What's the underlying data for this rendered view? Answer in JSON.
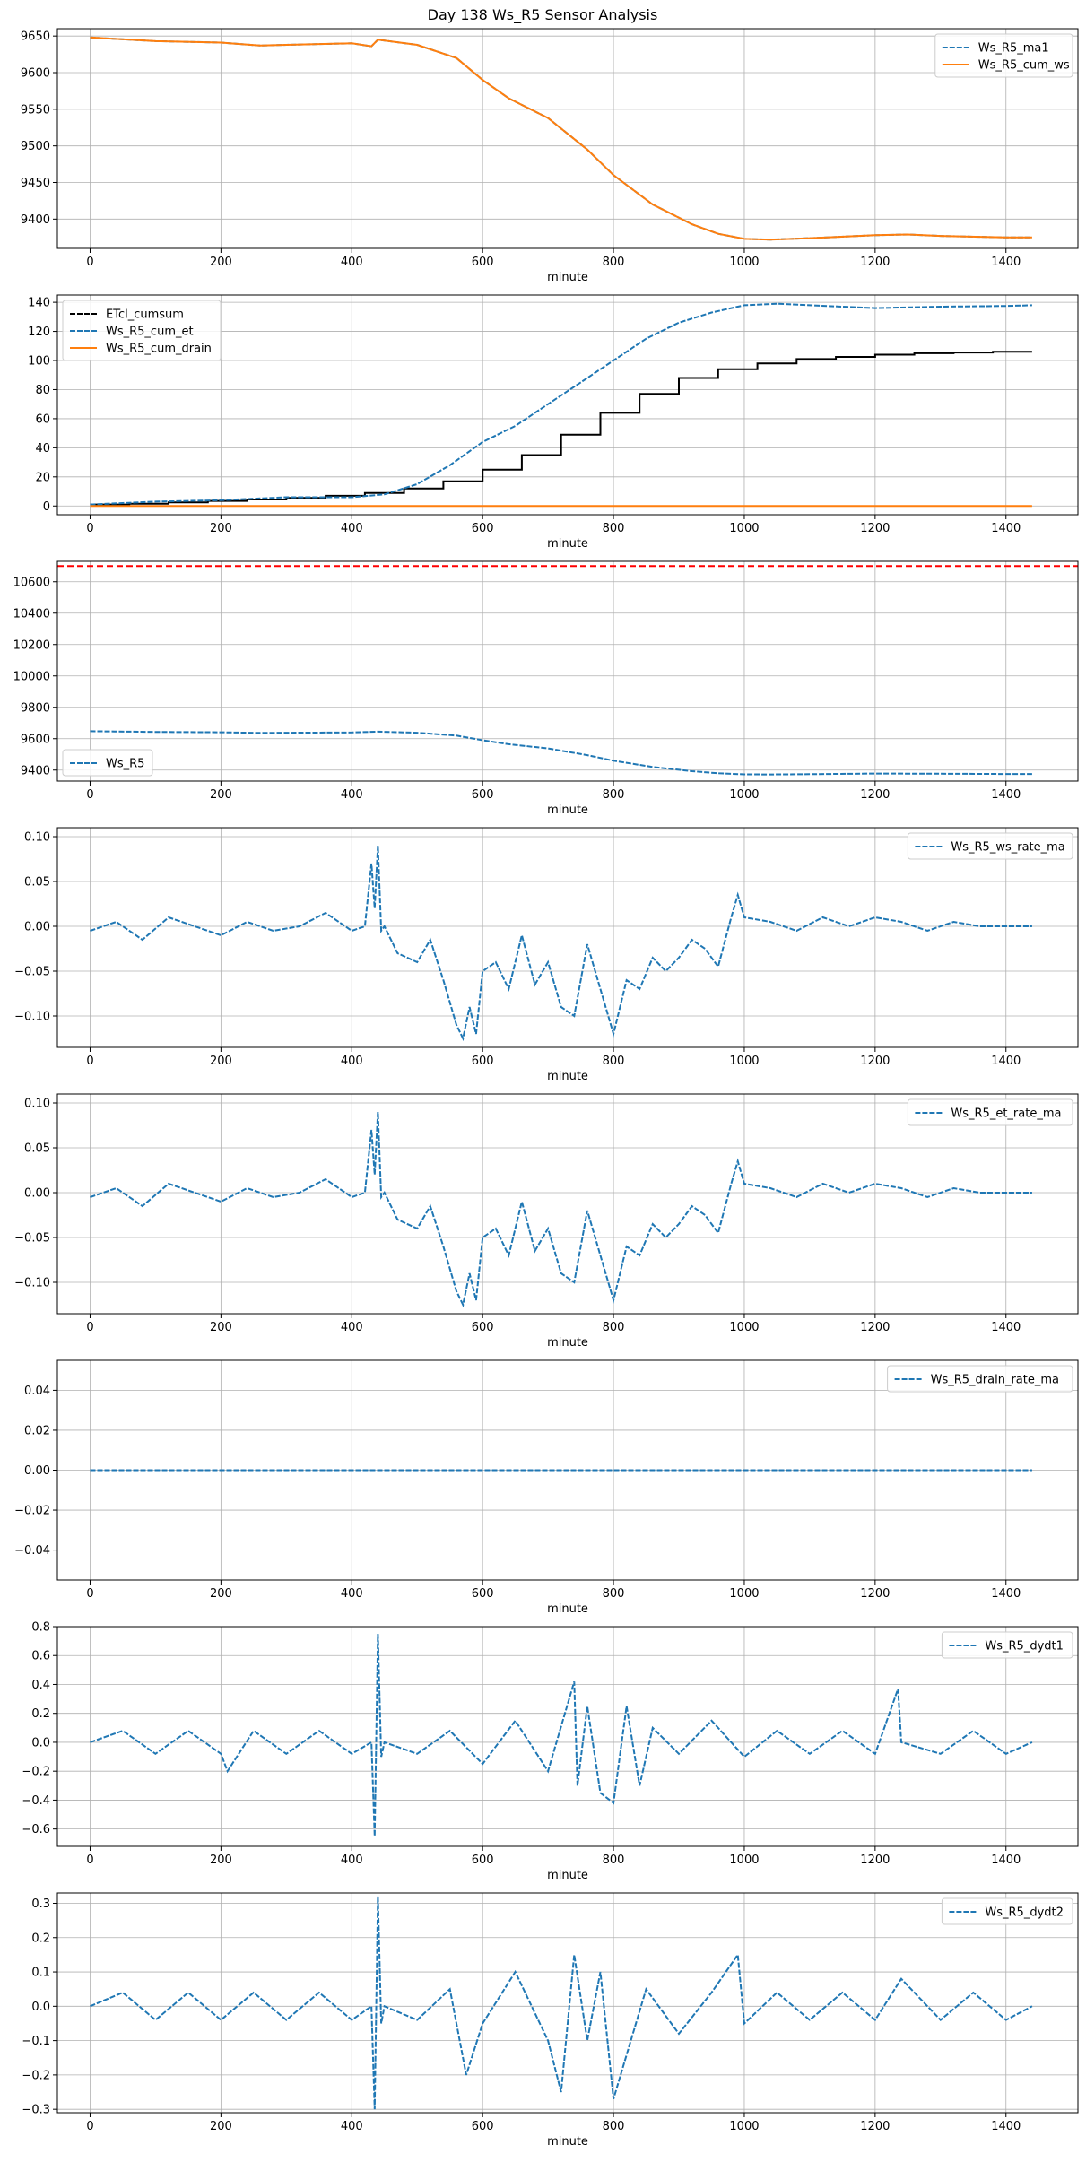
{
  "figure": {
    "title": "Day 138 Ws_R5 Sensor Analysis"
  },
  "colors": {
    "blue": "#1f77b4",
    "orange": "#ff7f0e",
    "black": "#000000",
    "red": "#ff0000",
    "grid": "#b0b0b0"
  },
  "chart_data": [
    {
      "type": "line",
      "xlabel": "minute",
      "xlim": [
        -50,
        1510
      ],
      "ylim": [
        9360,
        9660
      ],
      "xticks": [
        0,
        200,
        400,
        600,
        800,
        1000,
        1200,
        1400
      ],
      "yticks": [
        9400,
        9450,
        9500,
        9550,
        9600,
        9650
      ],
      "legend": "top-right",
      "grid": true,
      "series": [
        {
          "name": "Ws_R5_ma1",
          "color": "#1f77b4",
          "style": "dashed",
          "x": [
            0,
            100,
            200,
            260,
            300,
            400,
            430,
            440,
            500,
            560,
            600,
            640,
            700,
            760,
            800,
            860,
            920,
            960,
            1000,
            1040,
            1100,
            1200,
            1250,
            1300,
            1400,
            1440
          ],
          "y": [
            9648,
            9643,
            9641,
            9637,
            9638,
            9640,
            9636,
            9645,
            9638,
            9620,
            9590,
            9565,
            9538,
            9495,
            9460,
            9420,
            9393,
            9380,
            9373,
            9372,
            9374,
            9378,
            9379,
            9377,
            9375,
            9375
          ]
        },
        {
          "name": "Ws_R5_cum_ws",
          "color": "#ff7f0e",
          "style": "solid",
          "x": [
            0,
            100,
            200,
            260,
            300,
            400,
            430,
            440,
            500,
            560,
            600,
            640,
            700,
            760,
            800,
            860,
            920,
            960,
            1000,
            1040,
            1100,
            1200,
            1250,
            1300,
            1400,
            1440
          ],
          "y": [
            9648,
            9643,
            9641,
            9637,
            9638,
            9640,
            9636,
            9645,
            9638,
            9620,
            9590,
            9565,
            9538,
            9495,
            9460,
            9420,
            9393,
            9380,
            9373,
            9372,
            9374,
            9378,
            9379,
            9377,
            9375,
            9375
          ]
        }
      ]
    },
    {
      "type": "line",
      "xlabel": "minute",
      "xlim": [
        -50,
        1510
      ],
      "ylim": [
        -6,
        145
      ],
      "xticks": [
        0,
        200,
        400,
        600,
        800,
        1000,
        1200,
        1400
      ],
      "yticks": [
        0,
        20,
        40,
        60,
        80,
        100,
        120,
        140
      ],
      "legend": "top-left",
      "grid": true,
      "series": [
        {
          "name": "ETcl_cumsum",
          "color": "#000000",
          "style": "step",
          "x": [
            0,
            60,
            120,
            180,
            240,
            300,
            360,
            420,
            480,
            540,
            600,
            660,
            720,
            780,
            840,
            900,
            960,
            1020,
            1080,
            1140,
            1200,
            1260,
            1320,
            1380,
            1440
          ],
          "y": [
            1,
            1.5,
            2.5,
            3.5,
            4.5,
            5.5,
            7,
            9,
            12,
            17,
            25,
            35,
            49,
            64,
            77,
            88,
            94,
            98,
            101,
            102.5,
            104,
            105,
            105.5,
            106,
            106
          ]
        },
        {
          "name": "Ws_R5_cum_et",
          "color": "#1f77b4",
          "style": "dashed",
          "x": [
            0,
            100,
            200,
            300,
            400,
            450,
            500,
            550,
            600,
            650,
            700,
            750,
            800,
            850,
            900,
            950,
            1000,
            1050,
            1100,
            1200,
            1300,
            1400,
            1440
          ],
          "y": [
            1,
            3,
            4,
            6,
            6,
            8,
            15,
            28,
            44,
            55,
            70,
            85,
            100,
            115,
            126,
            133,
            138,
            139,
            138,
            136,
            137,
            137.5,
            138
          ]
        },
        {
          "name": "Ws_R5_cum_drain",
          "color": "#ff7f0e",
          "style": "solid",
          "x": [
            0,
            1440
          ],
          "y": [
            0,
            0
          ]
        }
      ]
    },
    {
      "type": "line",
      "xlabel": "minute",
      "xlim": [
        -50,
        1510
      ],
      "ylim": [
        9330,
        10730
      ],
      "xticks": [
        0,
        200,
        400,
        600,
        800,
        1000,
        1200,
        1400
      ],
      "yticks": [
        9400,
        9600,
        9800,
        10000,
        10200,
        10400,
        10600
      ],
      "legend": "bottom-left",
      "grid": true,
      "hline": {
        "y": 10700,
        "color": "#ff0000",
        "style": "dashed"
      },
      "series": [
        {
          "name": "Ws_R5",
          "color": "#1f77b4",
          "style": "dashed",
          "x": [
            0,
            100,
            200,
            260,
            300,
            400,
            440,
            500,
            560,
            600,
            640,
            700,
            760,
            800,
            860,
            920,
            960,
            1000,
            1040,
            1100,
            1200,
            1300,
            1400,
            1440
          ],
          "y": [
            9648,
            9643,
            9641,
            9637,
            9638,
            9640,
            9645,
            9638,
            9620,
            9590,
            9565,
            9538,
            9495,
            9460,
            9420,
            9393,
            9380,
            9373,
            9372,
            9374,
            9378,
            9377,
            9375,
            9375
          ]
        }
      ]
    },
    {
      "type": "line",
      "xlabel": "minute",
      "xlim": [
        -50,
        1510
      ],
      "ylim": [
        -0.135,
        0.11
      ],
      "xticks": [
        0,
        200,
        400,
        600,
        800,
        1000,
        1200,
        1400
      ],
      "yticks": [
        -0.1,
        -0.05,
        0.0,
        0.05,
        0.1
      ],
      "yformat": 2,
      "legend": "top-right",
      "grid": true,
      "series": [
        {
          "name": "Ws_R5_ws_rate_ma",
          "color": "#1f77b4",
          "style": "dashed",
          "x": [
            0,
            40,
            80,
            120,
            160,
            200,
            240,
            280,
            320,
            360,
            400,
            420,
            430,
            435,
            440,
            445,
            450,
            470,
            500,
            520,
            540,
            560,
            570,
            580,
            590,
            600,
            620,
            640,
            660,
            680,
            700,
            720,
            740,
            760,
            780,
            800,
            820,
            840,
            860,
            880,
            900,
            920,
            940,
            960,
            980,
            990,
            1000,
            1040,
            1080,
            1120,
            1160,
            1200,
            1240,
            1280,
            1320,
            1360,
            1400,
            1440
          ],
          "y": [
            -0.005,
            0.005,
            -0.015,
            0.01,
            0.0,
            -0.01,
            0.005,
            -0.005,
            0.0,
            0.015,
            -0.005,
            0.0,
            0.07,
            0.02,
            0.09,
            -0.005,
            0.0,
            -0.03,
            -0.04,
            -0.015,
            -0.06,
            -0.11,
            -0.125,
            -0.09,
            -0.12,
            -0.05,
            -0.04,
            -0.07,
            -0.01,
            -0.065,
            -0.04,
            -0.09,
            -0.1,
            -0.02,
            -0.07,
            -0.12,
            -0.06,
            -0.07,
            -0.035,
            -0.05,
            -0.035,
            -0.015,
            -0.025,
            -0.045,
            0.01,
            0.035,
            0.01,
            0.005,
            -0.005,
            0.01,
            0.0,
            0.01,
            0.005,
            -0.005,
            0.005,
            0.0,
            0.0,
            0.0
          ]
        }
      ]
    },
    {
      "type": "line",
      "xlabel": "minute",
      "xlim": [
        -50,
        1510
      ],
      "ylim": [
        -0.135,
        0.11
      ],
      "xticks": [
        0,
        200,
        400,
        600,
        800,
        1000,
        1200,
        1400
      ],
      "yticks": [
        -0.1,
        -0.05,
        0.0,
        0.05,
        0.1
      ],
      "yformat": 2,
      "legend": "top-right",
      "grid": true,
      "series": [
        {
          "name": "Ws_R5_et_rate_ma",
          "color": "#1f77b4",
          "style": "dashed",
          "x": [
            0,
            40,
            80,
            120,
            160,
            200,
            240,
            280,
            320,
            360,
            400,
            420,
            430,
            435,
            440,
            445,
            450,
            470,
            500,
            520,
            540,
            560,
            570,
            580,
            590,
            600,
            620,
            640,
            660,
            680,
            700,
            720,
            740,
            760,
            780,
            800,
            820,
            840,
            860,
            880,
            900,
            920,
            940,
            960,
            980,
            990,
            1000,
            1040,
            1080,
            1120,
            1160,
            1200,
            1240,
            1280,
            1320,
            1360,
            1400,
            1440
          ],
          "y": [
            -0.005,
            0.005,
            -0.015,
            0.01,
            0.0,
            -0.01,
            0.005,
            -0.005,
            0.0,
            0.015,
            -0.005,
            0.0,
            0.07,
            0.02,
            0.09,
            -0.005,
            0.0,
            -0.03,
            -0.04,
            -0.015,
            -0.06,
            -0.11,
            -0.125,
            -0.09,
            -0.12,
            -0.05,
            -0.04,
            -0.07,
            -0.01,
            -0.065,
            -0.04,
            -0.09,
            -0.1,
            -0.02,
            -0.07,
            -0.12,
            -0.06,
            -0.07,
            -0.035,
            -0.05,
            -0.035,
            -0.015,
            -0.025,
            -0.045,
            0.01,
            0.035,
            0.01,
            0.005,
            -0.005,
            0.01,
            0.0,
            0.01,
            0.005,
            -0.005,
            0.005,
            0.0,
            0.0,
            0.0
          ]
        }
      ]
    },
    {
      "type": "line",
      "xlabel": "minute",
      "xlim": [
        -50,
        1510
      ],
      "ylim": [
        -0.055,
        0.055
      ],
      "xticks": [
        0,
        200,
        400,
        600,
        800,
        1000,
        1200,
        1400
      ],
      "yticks": [
        -0.04,
        -0.02,
        0.0,
        0.02,
        0.04
      ],
      "yformat": 2,
      "legend": "top-right",
      "grid": true,
      "series": [
        {
          "name": "Ws_R5_drain_rate_ma",
          "color": "#1f77b4",
          "style": "dashed",
          "x": [
            0,
            1440
          ],
          "y": [
            0,
            0
          ]
        }
      ]
    },
    {
      "type": "line",
      "xlabel": "minute",
      "xlim": [
        -50,
        1510
      ],
      "ylim": [
        -0.72,
        0.8
      ],
      "xticks": [
        0,
        200,
        400,
        600,
        800,
        1000,
        1200,
        1400
      ],
      "yticks": [
        -0.6,
        -0.4,
        -0.2,
        0.0,
        0.2,
        0.4,
        0.6,
        0.8
      ],
      "yformat": 1,
      "legend": "top-right",
      "grid": true,
      "series": [
        {
          "name": "Ws_R5_dydt1",
          "color": "#1f77b4",
          "style": "dashed",
          "x": [
            0,
            50,
            100,
            150,
            200,
            210,
            250,
            300,
            350,
            400,
            430,
            435,
            440,
            445,
            450,
            500,
            550,
            600,
            650,
            700,
            740,
            745,
            760,
            780,
            800,
            820,
            840,
            860,
            900,
            950,
            1000,
            1050,
            1100,
            1150,
            1200,
            1235,
            1240,
            1300,
            1350,
            1400,
            1440
          ],
          "y": [
            0,
            0.08,
            -0.08,
            0.08,
            -0.08,
            -0.2,
            0.08,
            -0.08,
            0.08,
            -0.08,
            0.0,
            -0.65,
            0.75,
            -0.1,
            0.0,
            -0.08,
            0.08,
            -0.15,
            0.15,
            -0.2,
            0.42,
            -0.3,
            0.25,
            -0.35,
            -0.42,
            0.25,
            -0.3,
            0.1,
            -0.08,
            0.15,
            -0.1,
            0.08,
            -0.08,
            0.08,
            -0.08,
            0.37,
            0.0,
            -0.08,
            0.08,
            -0.08,
            0.0
          ]
        }
      ]
    },
    {
      "type": "line",
      "xlabel": "minute",
      "xlim": [
        -50,
        1510
      ],
      "ylim": [
        -0.31,
        0.33
      ],
      "xticks": [
        0,
        200,
        400,
        600,
        800,
        1000,
        1200,
        1400
      ],
      "yticks": [
        -0.3,
        -0.2,
        -0.1,
        0.0,
        0.1,
        0.2,
        0.3
      ],
      "yformat": 1,
      "legend": "top-right",
      "grid": true,
      "series": [
        {
          "name": "Ws_R5_dydt2",
          "color": "#1f77b4",
          "style": "dashed",
          "x": [
            0,
            50,
            100,
            150,
            200,
            250,
            300,
            350,
            400,
            430,
            435,
            440,
            445,
            450,
            500,
            550,
            575,
            600,
            650,
            700,
            720,
            740,
            760,
            780,
            800,
            850,
            900,
            950,
            990,
            1000,
            1050,
            1100,
            1150,
            1200,
            1240,
            1300,
            1350,
            1400,
            1440
          ],
          "y": [
            0,
            0.04,
            -0.04,
            0.04,
            -0.04,
            0.04,
            -0.04,
            0.04,
            -0.04,
            0.0,
            -0.3,
            0.32,
            -0.05,
            0.0,
            -0.04,
            0.05,
            -0.2,
            -0.05,
            0.1,
            -0.1,
            -0.25,
            0.15,
            -0.1,
            0.1,
            -0.27,
            0.05,
            -0.08,
            0.04,
            0.15,
            -0.05,
            0.04,
            -0.04,
            0.04,
            -0.04,
            0.08,
            -0.04,
            0.04,
            -0.04,
            0.0
          ]
        }
      ]
    }
  ]
}
